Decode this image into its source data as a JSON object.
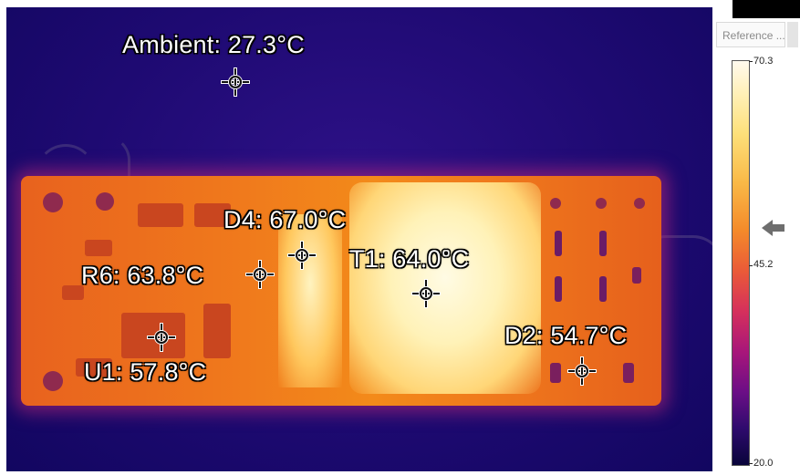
{
  "measurements": [
    {
      "name": "Ambient",
      "value": "27.3°C",
      "text": "Ambient: 27.3°C"
    },
    {
      "name": "D4",
      "value": "67.0°C",
      "text": "D4: 67.0°C"
    },
    {
      "name": "T1",
      "value": "64.0°C",
      "text": "T1: 64.0°C"
    },
    {
      "name": "R6",
      "value": "63.8°C",
      "text": "R6: 63.8°C"
    },
    {
      "name": "U1",
      "value": "57.8°C",
      "text": "U1: 57.8°C"
    },
    {
      "name": "D2",
      "value": "54.7°C",
      "text": "D2: 54.7°C"
    }
  ],
  "panel": {
    "title": "Reference ...",
    "scale_max": "70.3",
    "scale_mid": "45.2",
    "scale_min": "20.0",
    "palette": "iron",
    "colors": {
      "hot": "#fffaee",
      "warm": "#f48a2a",
      "cold": "#08043a"
    }
  }
}
